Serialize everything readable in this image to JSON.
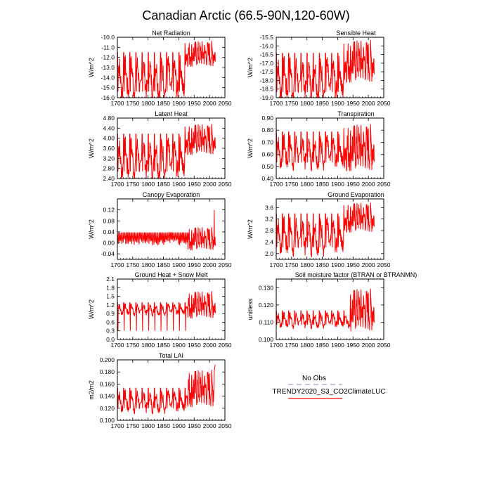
{
  "figure": {
    "title": "Canadian Arctic (66.5-90N,120-60W)"
  },
  "legend": {
    "obs_label": "No Obs",
    "model_label": "TRENDY2020_S3_CO2ClimateLUC",
    "obs_color": "#b0b0d8",
    "model_color": "#ff0000"
  },
  "chart_data": [
    {
      "type": "line",
      "title": "Net Radiation",
      "ylabel": "W/m^2",
      "xlim": [
        1700,
        2050
      ],
      "ylim": [
        -16.0,
        -10.0
      ],
      "xticks": [
        1700,
        1750,
        1800,
        1850,
        1900,
        1950,
        2000,
        2050
      ],
      "yticks": [
        -16.0,
        -15.0,
        -14.0,
        -13.0,
        -12.0,
        -11.0,
        -10.0
      ],
      "ytick_labels": [
        "-16.0",
        "-15.0",
        "-14.0",
        "-13.0",
        "-12.0",
        "-11.0",
        "-10.0"
      ],
      "series": [
        {
          "name": "TRENDY2020_S3_CO2ClimateLUC",
          "color": "#ff0000",
          "x_range": [
            1700,
            2019
          ],
          "cycle_years": 20,
          "low": -15.6,
          "high": -11.3,
          "recent_low": -13.0,
          "recent_high": -10.3,
          "recent_start": 1920
        }
      ]
    },
    {
      "type": "line",
      "title": "Sensible Heat",
      "ylabel": "W/m^2",
      "xlim": [
        1700,
        2050
      ],
      "ylim": [
        -19.0,
        -15.5
      ],
      "xticks": [
        1700,
        1750,
        1800,
        1850,
        1900,
        1950,
        2000,
        2050
      ],
      "yticks": [
        -19.0,
        -18.5,
        -18.0,
        -17.5,
        -17.0,
        -16.5,
        -16.0,
        -15.5
      ],
      "ytick_labels": [
        "-19.0",
        "-18.5",
        "-18.0",
        "-17.5",
        "-17.0",
        "-16.5",
        "-16.0",
        "-15.5"
      ],
      "series": [
        {
          "name": "TRENDY2020_S3_CO2ClimateLUC",
          "color": "#ff0000",
          "x_range": [
            1700,
            2019
          ],
          "cycle_years": 20,
          "low": -18.8,
          "high": -16.3,
          "recent_low": -18.2,
          "recent_high": -15.6,
          "recent_start": 1920
        }
      ]
    },
    {
      "type": "line",
      "title": "Latent Heat",
      "ylabel": "W/m^2",
      "xlim": [
        1700,
        2050
      ],
      "ylim": [
        2.4,
        4.8
      ],
      "xticks": [
        1700,
        1750,
        1800,
        1850,
        1900,
        1950,
        2000,
        2050
      ],
      "yticks": [
        2.4,
        2.8,
        3.2,
        3.6,
        4.0,
        4.4,
        4.8
      ],
      "ytick_labels": [
        "2.40",
        "2.80",
        "3.20",
        "3.60",
        "4.00",
        "4.40",
        "4.80"
      ],
      "series": [
        {
          "name": "TRENDY2020_S3_CO2ClimateLUC",
          "color": "#ff0000",
          "x_range": [
            1700,
            2019
          ],
          "cycle_years": 20,
          "low": 2.6,
          "high": 4.25,
          "recent_low": 3.3,
          "recent_high": 4.6,
          "recent_start": 1920
        }
      ]
    },
    {
      "type": "line",
      "title": "Transpiration",
      "ylabel": "W/m^2",
      "xlim": [
        1700,
        2050
      ],
      "ylim": [
        0.4,
        0.9
      ],
      "xticks": [
        1700,
        1750,
        1800,
        1850,
        1900,
        1950,
        2000,
        2050
      ],
      "yticks": [
        0.4,
        0.5,
        0.6,
        0.7,
        0.8,
        0.9
      ],
      "ytick_labels": [
        "0.40",
        "0.50",
        "0.60",
        "0.70",
        "0.80",
        "0.90"
      ],
      "series": [
        {
          "name": "TRENDY2020_S3_CO2ClimateLUC",
          "color": "#ff0000",
          "x_range": [
            1700,
            2019
          ],
          "cycle_years": 20,
          "low": 0.52,
          "high": 0.8,
          "recent_low": 0.45,
          "recent_high": 0.86,
          "recent_start": 1920
        }
      ]
    },
    {
      "type": "line",
      "title": "Canopy Evaporation",
      "ylabel": "W/m^2",
      "xlim": [
        1700,
        2050
      ],
      "ylim": [
        -0.06,
        0.16
      ],
      "xticks": [
        1700,
        1750,
        1800,
        1850,
        1900,
        1950,
        2000,
        2050
      ],
      "yticks": [
        -0.04,
        0.0,
        0.04,
        0.08,
        0.12
      ],
      "ytick_labels": [
        "-0.04",
        "0.00",
        "0.04",
        "0.08",
        "0.12"
      ],
      "series": [
        {
          "name": "TRENDY2020_S3_CO2ClimateLUC",
          "color": "#ff0000",
          "x_range": [
            1700,
            2019
          ],
          "cycle_years": 4,
          "low": 0.0,
          "high": 0.04,
          "recent_low": -0.03,
          "recent_high": 0.06,
          "recent_start": 1930,
          "spike_x": 2015,
          "spike_y": 0.12
        }
      ]
    },
    {
      "type": "line",
      "title": "Ground Evaporation",
      "ylabel": "W/m^2",
      "xlim": [
        1700,
        2050
      ],
      "ylim": [
        1.8,
        3.9
      ],
      "xticks": [
        1700,
        1750,
        1800,
        1850,
        1900,
        1950,
        2000,
        2050
      ],
      "yticks": [
        2.0,
        2.4,
        2.8,
        3.2,
        3.6
      ],
      "ytick_labels": [
        "2.0",
        "2.4",
        "2.8",
        "3.2",
        "3.6"
      ],
      "series": [
        {
          "name": "TRENDY2020_S3_CO2ClimateLUC",
          "color": "#ff0000",
          "x_range": [
            1700,
            2019
          ],
          "cycle_years": 20,
          "low": 2.15,
          "high": 3.45,
          "recent_low": 2.7,
          "recent_high": 3.8,
          "recent_start": 1920
        }
      ]
    },
    {
      "type": "line",
      "title": "Ground Heat + Snow Melt",
      "ylabel": "W/m^2",
      "xlim": [
        1700,
        2050
      ],
      "ylim": [
        0.0,
        2.1
      ],
      "xticks": [
        1700,
        1750,
        1800,
        1850,
        1900,
        1950,
        2000,
        2050
      ],
      "yticks": [
        0.0,
        0.3,
        0.6,
        0.9,
        1.2,
        1.5,
        1.8,
        2.1
      ],
      "ytick_labels": [
        "0.0",
        "0.3",
        "0.6",
        "0.9",
        "1.2",
        "1.5",
        "1.8",
        "2.1"
      ],
      "series": [
        {
          "name": "TRENDY2020_S3_CO2ClimateLUC",
          "color": "#ff0000",
          "x_range": [
            1700,
            2019
          ],
          "cycle_years": 20,
          "low": 0.9,
          "high": 1.3,
          "recent_low": 0.7,
          "recent_high": 1.7,
          "recent_start": 1930,
          "dip_y": 0.3
        }
      ]
    },
    {
      "type": "line",
      "title": "Soil moisture factor (BTRAN or BTRANMN)",
      "ylabel": "unitless",
      "xlim": [
        1700,
        2050
      ],
      "ylim": [
        0.1,
        0.135
      ],
      "xticks": [
        1700,
        1750,
        1800,
        1850,
        1900,
        1950,
        2000,
        2050
      ],
      "yticks": [
        0.1,
        0.11,
        0.12,
        0.13
      ],
      "ytick_labels": [
        "0.100",
        "0.110",
        "0.120",
        "0.130"
      ],
      "series": [
        {
          "name": "TRENDY2020_S3_CO2ClimateLUC",
          "color": "#ff0000",
          "x_range": [
            1700,
            2019
          ],
          "cycle_years": 20,
          "low": 0.108,
          "high": 0.117,
          "recent_low": 0.104,
          "recent_high": 0.13,
          "recent_start": 1940
        }
      ]
    },
    {
      "type": "line",
      "title": "Total LAI",
      "ylabel": "m2/m2",
      "xlim": [
        1700,
        2050
      ],
      "ylim": [
        0.1,
        0.2
      ],
      "xticks": [
        1700,
        1750,
        1800,
        1850,
        1900,
        1950,
        2000,
        2050
      ],
      "yticks": [
        0.1,
        0.12,
        0.14,
        0.16,
        0.18,
        0.2
      ],
      "ytick_labels": [
        "0.100",
        "0.120",
        "0.140",
        "0.160",
        "0.180",
        "0.200"
      ],
      "series": [
        {
          "name": "TRENDY2020_S3_CO2ClimateLUC",
          "color": "#ff0000",
          "x_range": [
            1700,
            2019
          ],
          "cycle_years": 20,
          "low": 0.118,
          "high": 0.155,
          "recent_low": 0.12,
          "recent_high": 0.185,
          "recent_start": 1930,
          "end_peak": 0.195
        }
      ]
    }
  ]
}
